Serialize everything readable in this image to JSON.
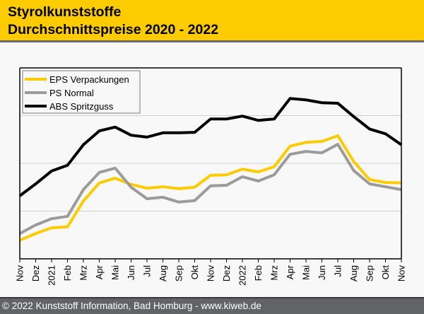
{
  "header": {
    "title_line1": "Styrolkunststoffe",
    "title_line2": "Durchschnittspreise 2020 - 2022"
  },
  "footer": {
    "text": "© 2022 Kunststoff Information, Bad Homburg - www.kiweb.de"
  },
  "chart_data": {
    "type": "line",
    "title": "Styrolkunststoffe Durchschnittspreise 2020 - 2022",
    "xlabel": "",
    "ylabel": "",
    "y_unit_note": "no y-axis labels shown; values are relative index in gridline units (0 = axis bottom, 4 = plot top)",
    "ylim": [
      0,
      4
    ],
    "y_gridlines": [
      1,
      2,
      3
    ],
    "grid": true,
    "legend_position": "top-left",
    "x": [
      "Nov",
      "Dez",
      "2021",
      "Feb",
      "Mrz",
      "Apr",
      "Mai",
      "Jun",
      "Jul",
      "Aug",
      "Sep",
      "Okt",
      "Nov",
      "Dez",
      "2022",
      "Feb",
      "Mrz",
      "Apr",
      "Mai",
      "Jun",
      "Jul",
      "Aug",
      "Sep",
      "Okt",
      "Nov"
    ],
    "series": [
      {
        "name": "EPS Verpackungen",
        "color": "#fdcc00",
        "values": [
          0.39,
          0.53,
          0.65,
          0.67,
          1.21,
          1.59,
          1.69,
          1.56,
          1.48,
          1.51,
          1.47,
          1.5,
          1.75,
          1.76,
          1.88,
          1.82,
          1.93,
          2.36,
          2.44,
          2.46,
          2.58,
          2.04,
          1.66,
          1.6,
          1.59
        ]
      },
      {
        "name": "PS Normal",
        "color": "#9b9b9b",
        "values": [
          0.53,
          0.71,
          0.84,
          0.89,
          1.45,
          1.81,
          1.9,
          1.5,
          1.26,
          1.29,
          1.19,
          1.22,
          1.53,
          1.54,
          1.72,
          1.63,
          1.76,
          2.19,
          2.25,
          2.22,
          2.4,
          1.85,
          1.57,
          1.51,
          1.45
        ]
      },
      {
        "name": "ABS Spritzguss",
        "color": "#000000",
        "values": [
          1.32,
          1.57,
          1.84,
          1.96,
          2.39,
          2.68,
          2.76,
          2.59,
          2.55,
          2.64,
          2.64,
          2.65,
          2.93,
          2.93,
          2.99,
          2.9,
          2.93,
          3.36,
          3.33,
          3.27,
          3.26,
          2.98,
          2.72,
          2.62,
          2.39
        ]
      }
    ]
  }
}
